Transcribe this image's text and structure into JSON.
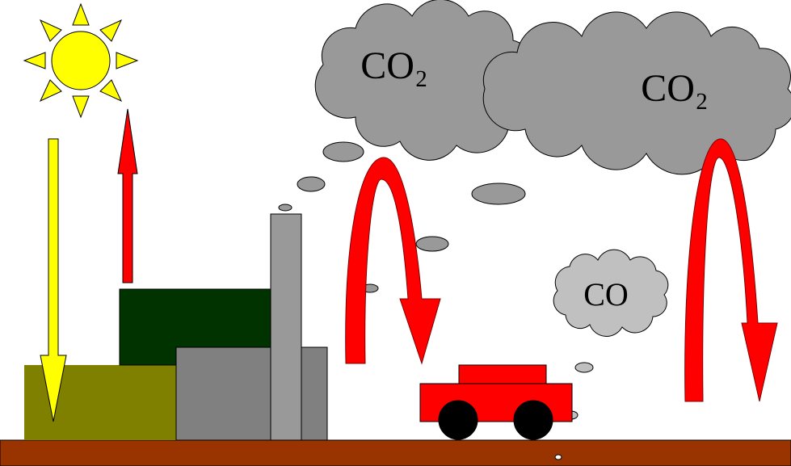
{
  "labels": [
    "CO₂",
    "CO₂",
    "CO"
  ]
}
